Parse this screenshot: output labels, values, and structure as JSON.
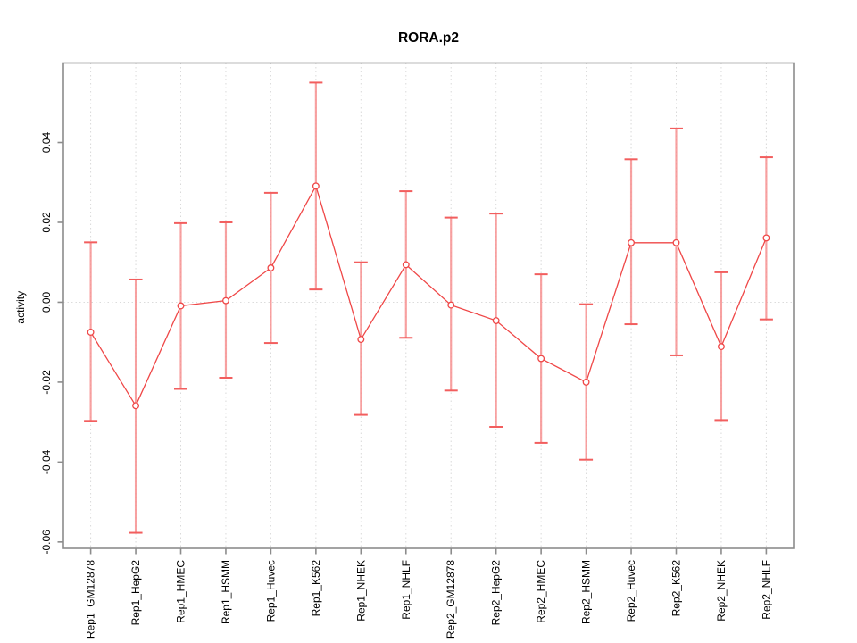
{
  "title": "RORA.p2",
  "chart_data": {
    "type": "scatter",
    "subtype": "points-with-error-bars",
    "title": "RORA.p2",
    "xlabel": "",
    "ylabel": "activity",
    "categories": [
      "Rep1_GM12878",
      "Rep1_HepG2",
      "Rep1_HMEC",
      "Rep1_HSMM",
      "Rep1_Huvec",
      "Rep1_K562",
      "Rep1_NHEK",
      "Rep1_NHLF",
      "Rep2_GM12878",
      "Rep2_HepG2",
      "Rep2_HMEC",
      "Rep2_HSMM",
      "Rep2_Huvec",
      "Rep2_K562",
      "Rep2_NHEK",
      "Rep2_NHLF"
    ],
    "series": [
      {
        "name": "activity",
        "values": [
          -0.0075,
          -0.0259,
          -0.0009,
          0.0004,
          0.0086,
          0.0291,
          -0.0093,
          0.0094,
          -0.0007,
          -0.0046,
          -0.0141,
          -0.02,
          0.0149,
          0.0149,
          -0.0111,
          0.0161
        ],
        "upper": [
          0.015,
          0.0057,
          0.0198,
          0.02,
          0.0274,
          0.055,
          0.01,
          0.0278,
          0.0212,
          0.0222,
          0.007,
          -0.0005,
          0.0358,
          0.0435,
          0.0075,
          0.0363
        ],
        "lower": [
          -0.0297,
          -0.0577,
          -0.0217,
          -0.0189,
          -0.0102,
          0.0032,
          -0.0282,
          -0.0089,
          -0.0221,
          -0.0312,
          -0.0352,
          -0.0394,
          -0.0055,
          -0.0133,
          -0.0295,
          -0.0043
        ]
      }
    ],
    "ylim": [
      -0.0616,
      0.0599
    ],
    "yticks": [
      0.04,
      0.02,
      0,
      -0.02,
      -0.04,
      -0.06
    ],
    "ytick_labels": [
      "0.04",
      "0.02",
      "0.00",
      "-0.02",
      "-0.04",
      "-0.06"
    ],
    "grid": "dotted vertical line at each category; dotted horizontal line at y=0",
    "legend": "none",
    "colors": {
      "point_line": "#ef4747",
      "error_bar": "#f79191",
      "error_cap": "#f25e5e",
      "grid": "#d9d9d9",
      "zero_line": "#dcdcdc",
      "frame": "#8c8c8c",
      "tick": "#8c8c8c",
      "text": "#000000"
    }
  }
}
